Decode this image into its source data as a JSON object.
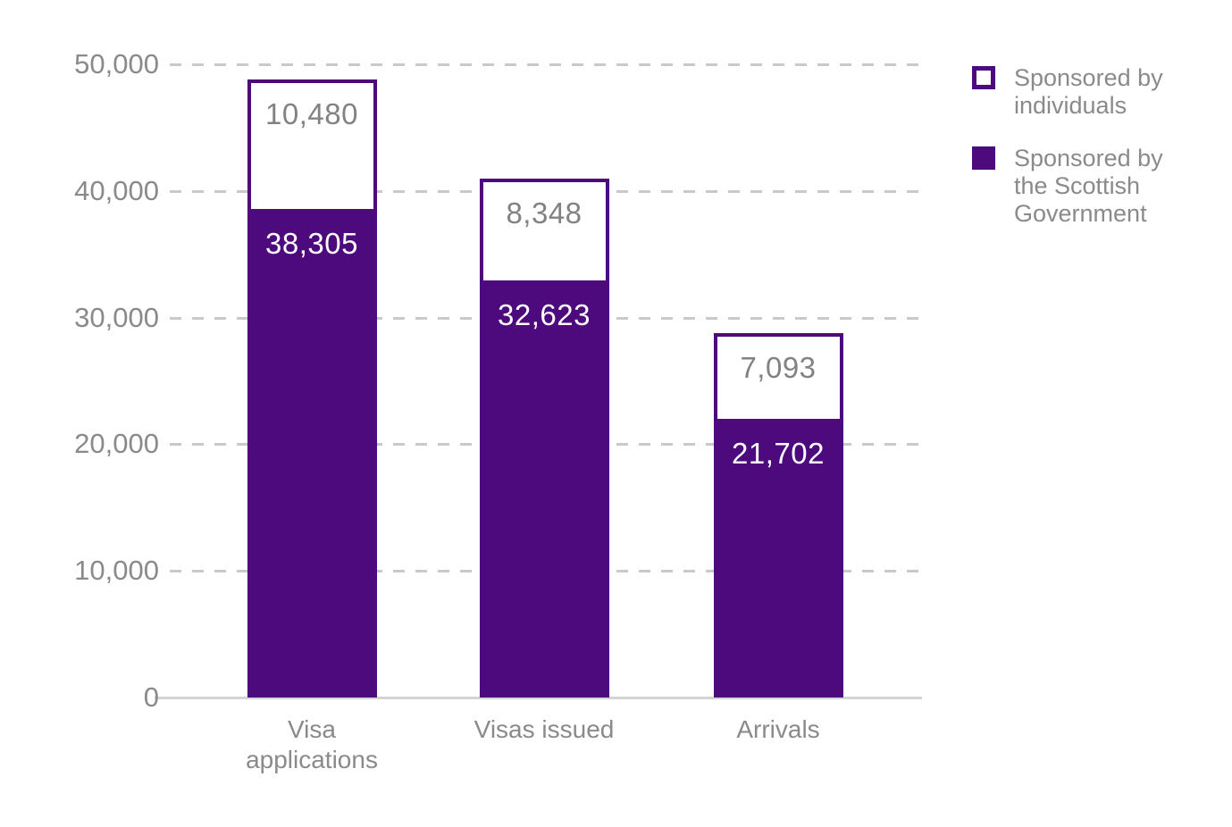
{
  "chart_data": {
    "type": "bar",
    "stacked": true,
    "orientation": "vertical",
    "title": "",
    "xlabel": "",
    "ylabel": "",
    "categories": [
      "Visa applications",
      "Visas issued",
      "Arrivals"
    ],
    "series": [
      {
        "name": "Sponsored by the Scottish Government",
        "values": [
          38305,
          32623,
          21702
        ],
        "value_labels": [
          "38,305",
          "32,623",
          "21,702"
        ],
        "fill": "#4d0a7c",
        "label_color": "#ffffff",
        "style": "filled"
      },
      {
        "name": "Sponsored by individuals",
        "values": [
          10480,
          8348,
          7093
        ],
        "value_labels": [
          "10,480",
          "8,348",
          "7,093"
        ],
        "fill": "#ffffff",
        "border_color": "#4d0a7c",
        "label_color": "#828282",
        "style": "outlined"
      }
    ],
    "yticks": [
      {
        "value": 0,
        "label": "0"
      },
      {
        "value": 10000,
        "label": "10,000"
      },
      {
        "value": 20000,
        "label": "20,000"
      },
      {
        "value": 30000,
        "label": "30,000"
      },
      {
        "value": 40000,
        "label": "40,000"
      },
      {
        "value": 50000,
        "label": "50,000"
      }
    ],
    "ylim": [
      0,
      50000
    ],
    "grid": "horizontal-dashed",
    "legend_position": "top-right",
    "legend": [
      {
        "label": "Sponsored by individuals",
        "swatch": "outlined"
      },
      {
        "label": "Sponsored by the Scottish Government",
        "swatch": "filled"
      }
    ]
  },
  "colors": {
    "purple": "#4d0a7c",
    "text_gray": "#8a8a8a",
    "gridline": "#c9c9c9",
    "axis_line": "#d4d4d4",
    "background": "#ffffff"
  }
}
